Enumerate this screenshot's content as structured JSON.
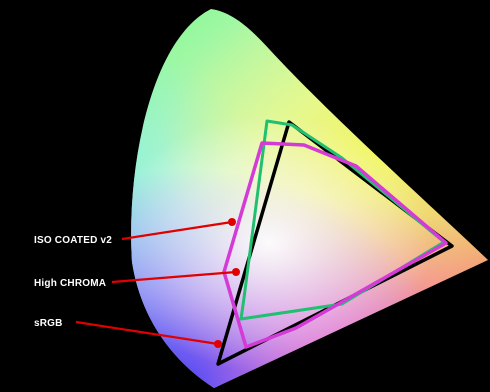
{
  "diagram": {
    "background_color": "#000000",
    "labels": {
      "iso_coated": "ISO COATED v2",
      "high_chroma": "High CHROMA",
      "srgb": "sRGB"
    },
    "colors": {
      "iso_coated": "#20c070",
      "high_chroma": "#d33ad6",
      "srgb": "#000000",
      "pointer": "#e00000",
      "label_text": "#ffffff"
    }
  }
}
